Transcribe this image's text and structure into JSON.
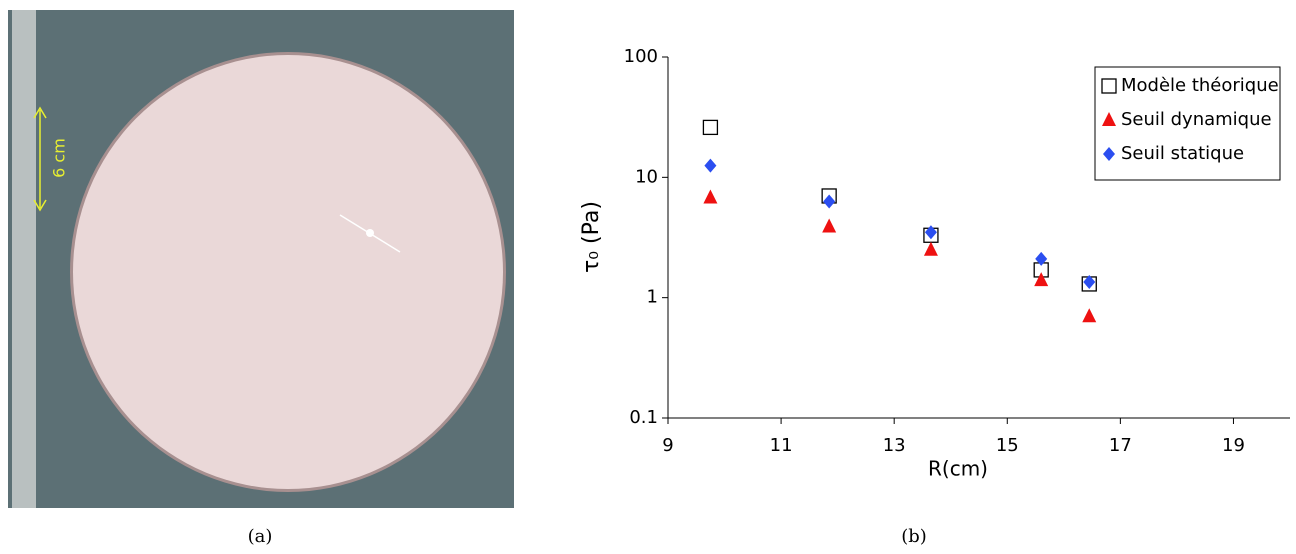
{
  "photo": {
    "annotation": "6 cm",
    "caption": "(a)"
  },
  "chart_caption": "(b)",
  "chart_data": {
    "type": "scatter",
    "xlabel": "R(cm)",
    "ylabel": "τ₀ (Pa)",
    "x": [
      9.75,
      11.85,
      13.65,
      15.6,
      16.45
    ],
    "series": [
      {
        "name": "Modèle théorique",
        "color": "#000000",
        "marker": "square",
        "values": [
          26,
          7,
          3.3,
          1.7,
          1.3
        ]
      },
      {
        "name": "Seuil dynamique",
        "color": "#ee1111",
        "marker": "triangle",
        "values": [
          6.8,
          3.9,
          2.5,
          1.4,
          0.7
        ]
      },
      {
        "name": "Seuil statique",
        "color": "#2b4ef0",
        "marker": "diamond",
        "values": [
          12.5,
          6.3,
          3.5,
          2.1,
          1.35
        ]
      }
    ],
    "xlim": [
      9,
      20
    ],
    "xticks": [
      9,
      11,
      13,
      15,
      17,
      19
    ],
    "ylim": [
      0.1,
      100
    ],
    "yticks": [
      0.1,
      1,
      10,
      100
    ],
    "ylog": true,
    "grid": false,
    "legend": "top-right"
  }
}
